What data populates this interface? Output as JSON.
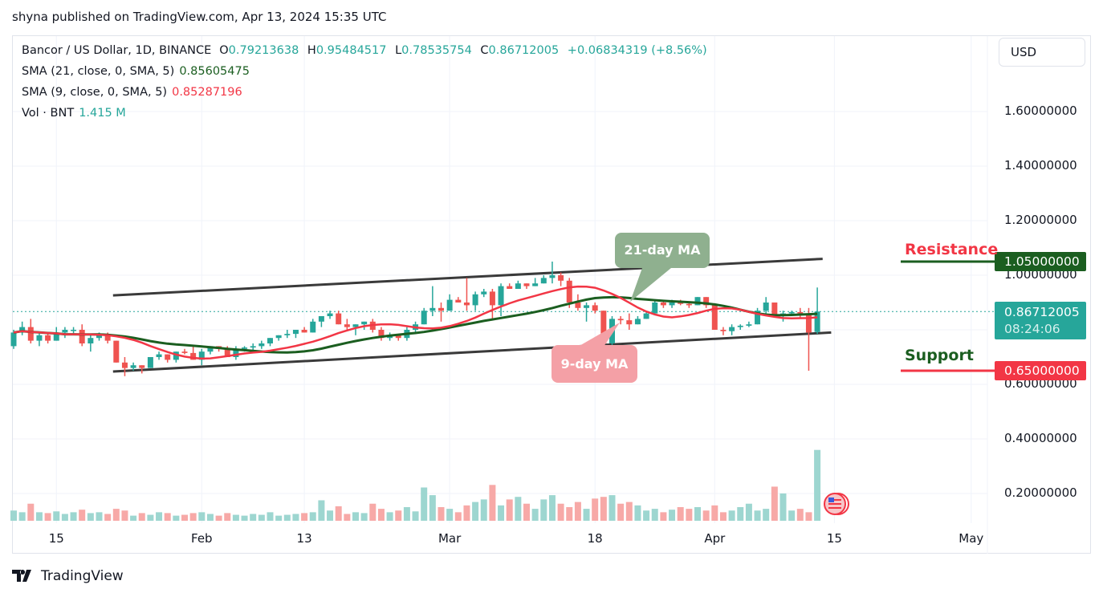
{
  "publisher": "shyna published on TradingView.com, Apr 13, 2024 15:35 UTC",
  "legend": {
    "symbol": "Bancor / US Dollar, 1D, BINANCE",
    "o_label": "O",
    "o": "0.79213638",
    "h_label": "H",
    "h": "0.95484517",
    "l_label": "L",
    "l": "0.78535754",
    "c_label": "C",
    "c": "0.86712005",
    "change": "+0.06834319 (+8.56%)",
    "sma21_label": "SMA (21, close, 0, SMA, 5)",
    "sma21_value": "0.85605475",
    "sma9_label": "SMA (9, close, 0, SMA, 5)",
    "sma9_value": "0.85287196",
    "vol_label": "Vol · BNT",
    "vol_value": "1.415 M"
  },
  "currency": "USD",
  "price_axis": [
    "1.60000000",
    "1.40000000",
    "1.20000000",
    "1.00000000",
    "0.60000000",
    "0.40000000",
    "0.20000000"
  ],
  "price_axis_values": [
    1.6,
    1.4,
    1.2,
    1.0,
    0.6,
    0.4,
    0.2
  ],
  "tags": {
    "resistance_price": "1.05000000",
    "last_price": "0.86712005",
    "countdown": "08:24:06",
    "support_price": "0.65000000"
  },
  "annotations": {
    "resistance": "Resistance",
    "support": "Support",
    "ma21_callout": "21-day MA",
    "ma9_callout": "9-day MA"
  },
  "colors": {
    "up": "#26a69a",
    "down": "#ef5350",
    "sma21": "#1b5e20",
    "sma9": "#f23645",
    "resistance": "#1b5e20",
    "support": "#f23645",
    "channel": "#3a3a3a"
  },
  "time_axis": [
    {
      "label": "15",
      "day": 5
    },
    {
      "label": "Feb",
      "day": 22
    },
    {
      "label": "13",
      "day": 34
    },
    {
      "label": "Mar",
      "day": 51
    },
    {
      "label": "18",
      "day": 68
    },
    {
      "label": "Apr",
      "day": 82
    },
    {
      "label": "15",
      "day": 96
    },
    {
      "label": "May",
      "day": 112
    }
  ],
  "logo": "TradingView",
  "chart_data": {
    "type": "candlestick",
    "start_date": "2024-01-10",
    "end_date": "2024-04-13",
    "ylim": [
      0.1,
      1.75
    ],
    "levels": {
      "resistance": 1.05,
      "support": 0.65
    },
    "channel": {
      "upper": [
        [
          "2024-01-22",
          0.926
        ],
        [
          "2024-04-14",
          1.06
        ]
      ],
      "lower": [
        [
          "2024-01-22",
          0.647
        ],
        [
          "2024-04-15",
          0.79
        ]
      ]
    },
    "ohlc": [
      [
        0.74,
        0.8,
        0.73,
        0.79
      ],
      [
        0.79,
        0.83,
        0.78,
        0.81
      ],
      [
        0.81,
        0.84,
        0.75,
        0.76
      ],
      [
        0.76,
        0.79,
        0.74,
        0.78
      ],
      [
        0.78,
        0.79,
        0.75,
        0.76
      ],
      [
        0.76,
        0.81,
        0.76,
        0.79
      ],
      [
        0.79,
        0.81,
        0.77,
        0.8
      ],
      [
        0.8,
        0.81,
        0.78,
        0.8
      ],
      [
        0.8,
        0.82,
        0.74,
        0.75
      ],
      [
        0.75,
        0.78,
        0.72,
        0.77
      ],
      [
        0.77,
        0.79,
        0.76,
        0.78
      ],
      [
        0.78,
        0.79,
        0.75,
        0.76
      ],
      [
        0.76,
        0.76,
        0.68,
        0.68
      ],
      [
        0.68,
        0.7,
        0.63,
        0.66
      ],
      [
        0.66,
        0.68,
        0.65,
        0.67
      ],
      [
        0.67,
        0.67,
        0.64,
        0.66
      ],
      [
        0.66,
        0.7,
        0.66,
        0.7
      ],
      [
        0.7,
        0.72,
        0.69,
        0.71
      ],
      [
        0.71,
        0.71,
        0.68,
        0.69
      ],
      [
        0.69,
        0.72,
        0.68,
        0.72
      ],
      [
        0.72,
        0.73,
        0.71,
        0.715
      ],
      [
        0.715,
        0.74,
        0.69,
        0.69
      ],
      [
        0.69,
        0.73,
        0.67,
        0.72
      ],
      [
        0.72,
        0.74,
        0.71,
        0.74
      ],
      [
        0.74,
        0.74,
        0.72,
        0.73
      ],
      [
        0.73,
        0.74,
        0.7,
        0.7
      ],
      [
        0.7,
        0.74,
        0.69,
        0.73
      ],
      [
        0.73,
        0.74,
        0.72,
        0.735
      ],
      [
        0.735,
        0.75,
        0.72,
        0.74
      ],
      [
        0.74,
        0.76,
        0.73,
        0.75
      ],
      [
        0.75,
        0.77,
        0.74,
        0.77
      ],
      [
        0.77,
        0.78,
        0.76,
        0.78
      ],
      [
        0.78,
        0.8,
        0.77,
        0.785
      ],
      [
        0.785,
        0.8,
        0.77,
        0.8
      ],
      [
        0.8,
        0.81,
        0.79,
        0.79
      ],
      [
        0.79,
        0.84,
        0.79,
        0.83
      ],
      [
        0.83,
        0.85,
        0.81,
        0.85
      ],
      [
        0.85,
        0.87,
        0.84,
        0.86
      ],
      [
        0.86,
        0.87,
        0.82,
        0.82
      ],
      [
        0.82,
        0.84,
        0.8,
        0.81
      ],
      [
        0.81,
        0.82,
        0.78,
        0.82
      ],
      [
        0.82,
        0.83,
        0.8,
        0.83
      ],
      [
        0.83,
        0.84,
        0.79,
        0.8
      ],
      [
        0.8,
        0.81,
        0.76,
        0.77
      ],
      [
        0.77,
        0.79,
        0.76,
        0.78
      ],
      [
        0.78,
        0.78,
        0.76,
        0.77
      ],
      [
        0.77,
        0.81,
        0.76,
        0.8
      ],
      [
        0.8,
        0.83,
        0.79,
        0.82
      ],
      [
        0.82,
        0.88,
        0.82,
        0.87
      ],
      [
        0.87,
        0.96,
        0.85,
        0.88
      ],
      [
        0.88,
        0.9,
        0.83,
        0.87
      ],
      [
        0.87,
        0.93,
        0.87,
        0.91
      ],
      [
        0.91,
        0.92,
        0.9,
        0.9
      ],
      [
        0.9,
        0.99,
        0.87,
        0.89
      ],
      [
        0.89,
        0.94,
        0.87,
        0.93
      ],
      [
        0.93,
        0.95,
        0.92,
        0.94
      ],
      [
        0.94,
        0.95,
        0.84,
        0.89
      ],
      [
        0.89,
        0.97,
        0.85,
        0.96
      ],
      [
        0.96,
        0.97,
        0.95,
        0.95
      ],
      [
        0.95,
        0.98,
        0.95,
        0.97
      ],
      [
        0.97,
        0.97,
        0.95,
        0.96
      ],
      [
        0.96,
        0.99,
        0.96,
        0.97
      ],
      [
        0.97,
        1.0,
        0.97,
        0.99
      ],
      [
        0.99,
        1.05,
        0.97,
        1.0
      ],
      [
        1.0,
        1.01,
        0.96,
        0.98
      ],
      [
        0.98,
        0.99,
        0.88,
        0.9
      ],
      [
        0.9,
        0.93,
        0.87,
        0.88
      ],
      [
        0.88,
        0.9,
        0.83,
        0.89
      ],
      [
        0.89,
        0.9,
        0.86,
        0.87
      ],
      [
        0.87,
        0.87,
        0.72,
        0.75
      ],
      [
        0.75,
        0.85,
        0.71,
        0.84
      ],
      [
        0.84,
        0.85,
        0.82,
        0.835
      ],
      [
        0.835,
        0.86,
        0.8,
        0.82
      ],
      [
        0.82,
        0.85,
        0.82,
        0.84
      ],
      [
        0.84,
        0.87,
        0.84,
        0.86
      ],
      [
        0.86,
        0.91,
        0.86,
        0.9
      ],
      [
        0.9,
        0.91,
        0.88,
        0.89
      ],
      [
        0.89,
        0.91,
        0.88,
        0.9
      ],
      [
        0.9,
        0.91,
        0.89,
        0.895
      ],
      [
        0.895,
        0.9,
        0.88,
        0.89
      ],
      [
        0.89,
        0.92,
        0.89,
        0.92
      ],
      [
        0.92,
        0.92,
        0.88,
        0.89
      ],
      [
        0.89,
        0.89,
        0.8,
        0.8
      ],
      [
        0.8,
        0.81,
        0.78,
        0.795
      ],
      [
        0.795,
        0.82,
        0.78,
        0.81
      ],
      [
        0.81,
        0.82,
        0.8,
        0.815
      ],
      [
        0.815,
        0.83,
        0.81,
        0.82
      ],
      [
        0.82,
        0.88,
        0.82,
        0.87
      ],
      [
        0.87,
        0.92,
        0.86,
        0.9
      ],
      [
        0.9,
        0.9,
        0.85,
        0.85
      ],
      [
        0.85,
        0.87,
        0.83,
        0.86
      ],
      [
        0.86,
        0.87,
        0.85,
        0.865
      ],
      [
        0.865,
        0.88,
        0.84,
        0.86
      ],
      [
        0.86,
        0.88,
        0.65,
        0.79
      ],
      [
        0.792,
        0.955,
        0.785,
        0.867
      ]
    ],
    "volume_millions": [
      0.12,
      0.1,
      0.2,
      0.1,
      0.09,
      0.11,
      0.08,
      0.1,
      0.13,
      0.09,
      0.1,
      0.08,
      0.14,
      0.12,
      0.06,
      0.09,
      0.07,
      0.1,
      0.09,
      0.06,
      0.07,
      0.09,
      0.1,
      0.08,
      0.06,
      0.09,
      0.07,
      0.06,
      0.08,
      0.07,
      0.1,
      0.06,
      0.07,
      0.08,
      0.09,
      0.1,
      0.24,
      0.12,
      0.17,
      0.08,
      0.1,
      0.09,
      0.2,
      0.14,
      0.1,
      0.12,
      0.16,
      0.11,
      0.39,
      0.3,
      0.16,
      0.14,
      0.1,
      0.18,
      0.22,
      0.25,
      0.42,
      0.18,
      0.25,
      0.28,
      0.2,
      0.14,
      0.25,
      0.3,
      0.2,
      0.16,
      0.22,
      0.14,
      0.26,
      0.28,
      0.3,
      0.2,
      0.22,
      0.18,
      0.12,
      0.14,
      0.1,
      0.13,
      0.16,
      0.14,
      0.16,
      0.12,
      0.18,
      0.1,
      0.12,
      0.16,
      0.2,
      0.12,
      0.14,
      0.4,
      0.32,
      0.12,
      0.14,
      0.1,
      0.83,
      1.415
    ]
  }
}
